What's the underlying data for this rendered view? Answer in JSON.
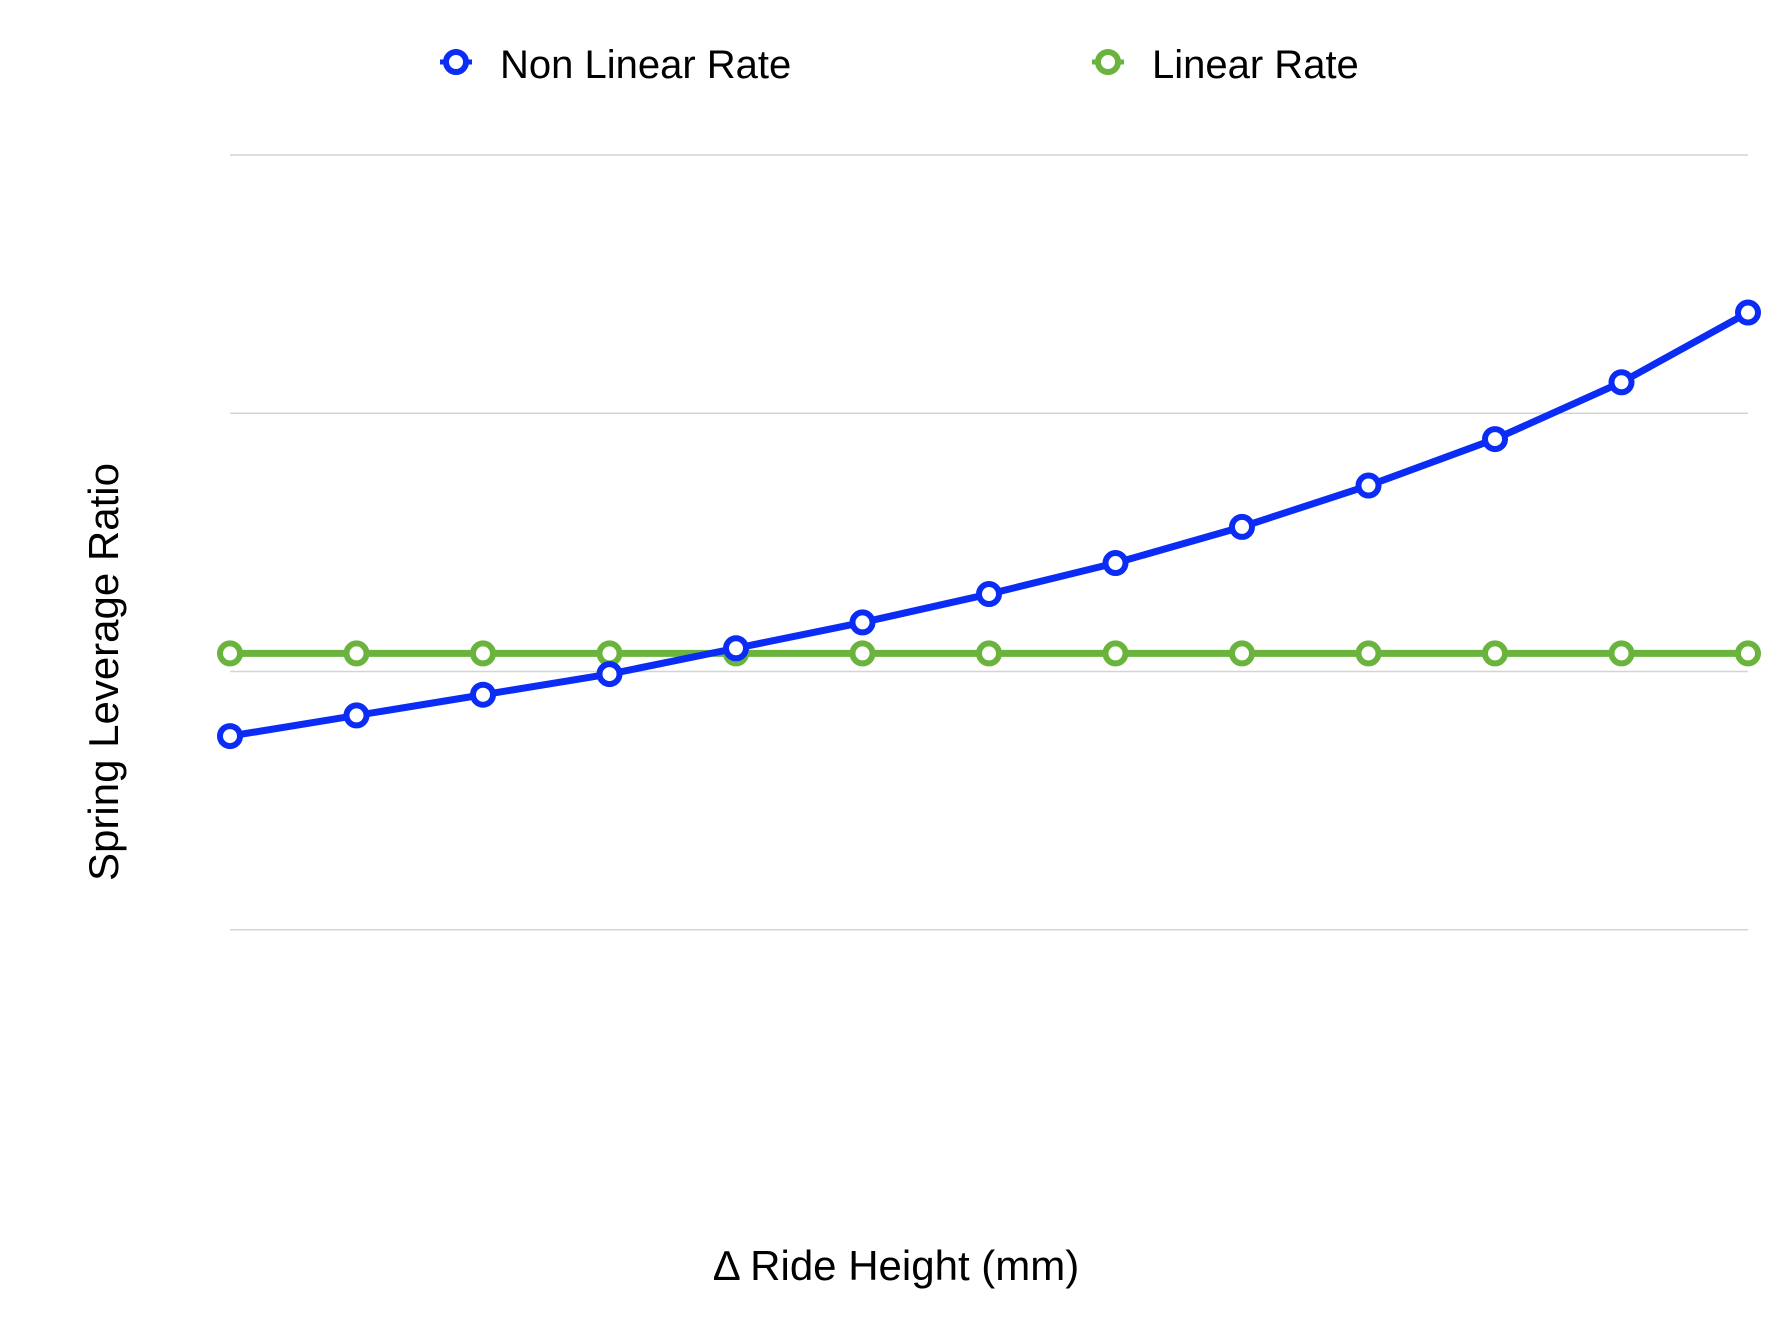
{
  "chart_data": {
    "type": "line",
    "title": "",
    "xlabel": "Δ Ride Height (mm)",
    "ylabel": "Spring Leverage Ratio",
    "x": [
      1,
      2,
      3,
      4,
      5,
      6,
      7,
      8,
      9,
      10,
      11,
      12,
      13
    ],
    "ylim": [
      0,
      4
    ],
    "grid": true,
    "legend": "top",
    "series": [
      {
        "name": "Non Linear Rate",
        "color": "#0b2cf5",
        "values": [
          1.75,
          1.83,
          1.91,
          1.99,
          2.09,
          2.19,
          2.3,
          2.42,
          2.56,
          2.72,
          2.9,
          3.12,
          3.39
        ]
      },
      {
        "name": "Linear Rate",
        "color": "#6ab43e",
        "values": [
          2.07,
          2.07,
          2.07,
          2.07,
          2.07,
          2.07,
          2.07,
          2.07,
          2.07,
          2.07,
          2.07,
          2.07,
          2.07
        ]
      }
    ]
  }
}
